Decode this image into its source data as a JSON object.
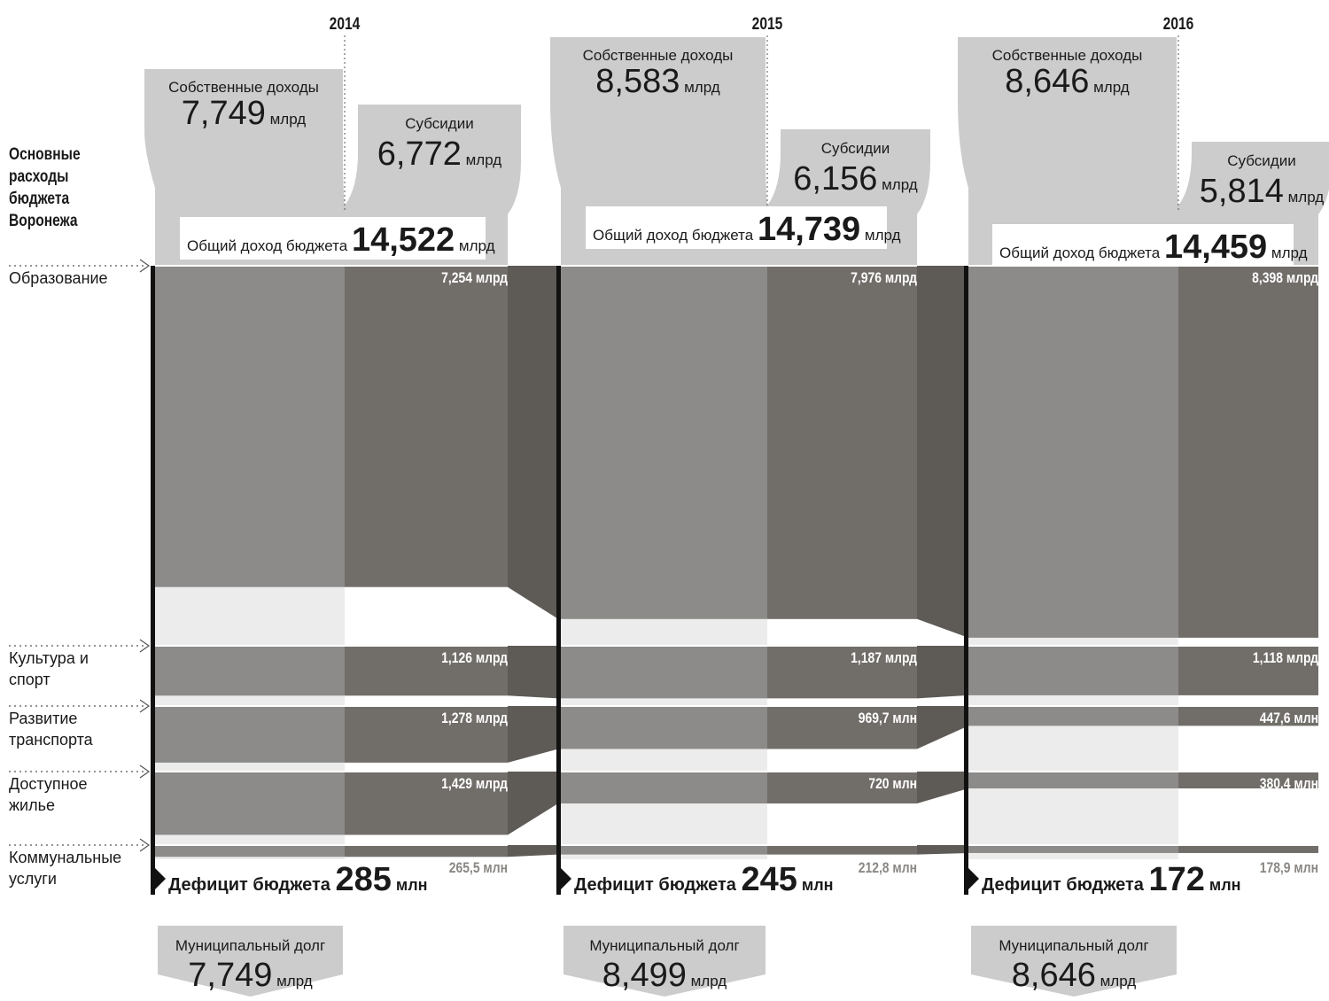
{
  "title_lines": [
    "Основные",
    "расходы",
    "бюджета",
    "Воронежа"
  ],
  "chart_data": {
    "type": "sankey",
    "title": "Основные расходы бюджета Воронежа",
    "unit_note": "млрд / млн руб.",
    "categories": [
      {
        "label_lines": [
          "Образование"
        ]
      },
      {
        "label_lines": [
          "Культура и",
          "спорт"
        ]
      },
      {
        "label_lines": [
          "Развитие",
          "транспорта"
        ]
      },
      {
        "label_lines": [
          "Доступное",
          "жилье"
        ]
      },
      {
        "label_lines": [
          "Коммунальные",
          "услуги"
        ]
      }
    ],
    "years": [
      {
        "year": "2014",
        "own_income": {
          "label": "Собственные доходы",
          "value": "7,749",
          "unit": "млрд"
        },
        "subsidies": {
          "label": "Субсидии",
          "value": "6,772",
          "unit": "млрд"
        },
        "total_income": {
          "label": "Общий доход бюджета",
          "value": "14,522",
          "unit": "млрд"
        },
        "expenses": [
          {
            "value": 7.254,
            "label": "7,254 млрд"
          },
          {
            "value": 1.126,
            "label": "1,126 млрд"
          },
          {
            "value": 1.278,
            "label": "1,278 млрд"
          },
          {
            "value": 1.429,
            "label": "1,429 млрд"
          },
          {
            "value": 0.2655,
            "label": "265,5 млн"
          }
        ],
        "deficit": {
          "label": "Дефицит бюджета",
          "value": "285",
          "unit": "млн"
        },
        "debt": {
          "label": "Муниципальный долг",
          "value": "7,749",
          "unit": "млрд"
        }
      },
      {
        "year": "2015",
        "own_income": {
          "label": "Собственные доходы",
          "value": "8,583",
          "unit": "млрд"
        },
        "subsidies": {
          "label": "Субсидии",
          "value": "6,156",
          "unit": "млрд"
        },
        "total_income": {
          "label": "Общий доход бюджета",
          "value": "14,739",
          "unit": "млрд"
        },
        "expenses": [
          {
            "value": 7.976,
            "label": "7,976 млрд"
          },
          {
            "value": 1.187,
            "label": "1,187 млрд"
          },
          {
            "value": 0.9697,
            "label": "969,7 млн"
          },
          {
            "value": 0.72,
            "label": "720 млн"
          },
          {
            "value": 0.2128,
            "label": "212,8 млн"
          }
        ],
        "deficit": {
          "label": "Дефицит бюджета",
          "value": "245",
          "unit": "млн"
        },
        "debt": {
          "label": "Муниципальный долг",
          "value": "8,499",
          "unit": "млрд"
        }
      },
      {
        "year": "2016",
        "own_income": {
          "label": "Собственные доходы",
          "value": "8,646",
          "unit": "млрд"
        },
        "subsidies": {
          "label": "Субсидии",
          "value": "5,814",
          "unit": "млрд"
        },
        "total_income": {
          "label": "Общий доход бюджета",
          "value": "14,459",
          "unit": "млрд"
        },
        "expenses": [
          {
            "value": 8.398,
            "label": "8,398 млрд"
          },
          {
            "value": 1.118,
            "label": "1,118 млрд"
          },
          {
            "value": 0.4476,
            "label": "447,6 млн"
          },
          {
            "value": 0.3804,
            "label": "380,4 млн"
          },
          {
            "value": 0.1789,
            "label": "178,9 млн"
          }
        ],
        "deficit": {
          "label": "Дефицит бюджета",
          "value": "172",
          "unit": "млн"
        },
        "debt": {
          "label": "Муниципальный долг",
          "value": "8,646",
          "unit": "млрд"
        }
      }
    ],
    "colors": {
      "light_band": "#cccccc",
      "own_flow": "#8c8b89",
      "sub_flow": "#716d69",
      "connector": "#5e5b57",
      "empty_own": "#ececec",
      "axis": "#111111",
      "label_on_dark": "#ffffff",
      "label_light": "#8a8784"
    }
  }
}
